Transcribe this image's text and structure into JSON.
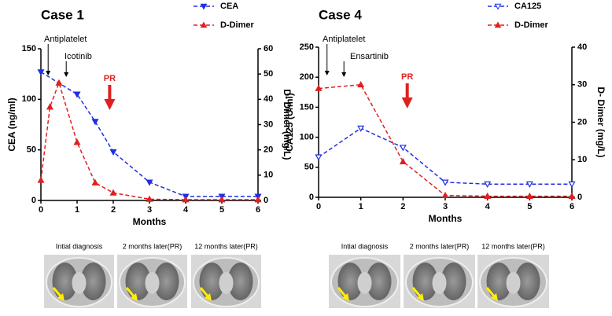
{
  "chart_data": [
    {
      "type": "line",
      "title": "Case 1",
      "xlabel": "Months",
      "ylabel": "CEA (ng/ml)",
      "y2label": "D- Dimer (mg/L)",
      "xlim": [
        0,
        6
      ],
      "xticks": [
        0,
        1,
        2,
        3,
        4,
        5,
        6
      ],
      "ylim": [
        0,
        150
      ],
      "yticks": [
        0,
        50,
        100,
        150
      ],
      "y2lim": [
        0,
        60
      ],
      "y2ticks": [
        0,
        10,
        20,
        30,
        40,
        50,
        60
      ],
      "series": [
        {
          "name": "CEA",
          "color": "#1f2fe0",
          "marker": "triangle-down",
          "filled": true,
          "axis": "y",
          "x": [
            0,
            1,
            1.5,
            2,
            3,
            4,
            5,
            6
          ],
          "values": [
            127,
            105,
            78,
            48,
            18,
            4,
            4,
            4
          ]
        },
        {
          "name": "D-Dimer",
          "color": "#e02020",
          "marker": "triangle-up",
          "filled": true,
          "axis": "y2",
          "x": [
            0,
            0.25,
            0.5,
            1,
            1.5,
            2,
            3,
            4,
            5,
            6
          ],
          "values": [
            8,
            37,
            46.5,
            23,
            7,
            3,
            0.5,
            0.3,
            0.3,
            0.3
          ]
        }
      ],
      "annotations": [
        "Antiplatelet",
        "Icotinib",
        "PR"
      ],
      "image_captions": [
        "Intial diagnosis",
        "2 months later(PR)",
        "12 months later(PR)"
      ]
    },
    {
      "type": "line",
      "title": "Case 4",
      "xlabel": "Months",
      "ylabel": "CA125 (U/ml)",
      "y2label": "D- Dimer (mg/L)",
      "xlim": [
        0,
        6
      ],
      "xticks": [
        0,
        1,
        2,
        3,
        4,
        5,
        6
      ],
      "ylim": [
        0,
        250
      ],
      "yticks": [
        0,
        50,
        100,
        150,
        200,
        250
      ],
      "y2lim": [
        0,
        40
      ],
      "y2ticks": [
        0,
        10,
        20,
        30,
        40
      ],
      "series": [
        {
          "name": "CA125",
          "color": "#1f2fe0",
          "marker": "triangle-down",
          "filled": false,
          "axis": "y",
          "x": [
            0,
            1,
            2,
            3,
            4,
            5,
            6
          ],
          "values": [
            67,
            115,
            83,
            25,
            22,
            22,
            22
          ]
        },
        {
          "name": "D-Dimer",
          "color": "#e02020",
          "marker": "triangle-up",
          "filled": true,
          "axis": "y2",
          "x": [
            0,
            1,
            2,
            3,
            4,
            5,
            6
          ],
          "values": [
            29,
            30,
            9.5,
            0.5,
            0.3,
            0.3,
            0.3
          ]
        }
      ],
      "annotations": [
        "Antiplatelet",
        "Ensartinib",
        "PR"
      ],
      "image_captions": [
        "Intial diagnosis",
        "2 months later(PR)",
        "12 months later(PR)"
      ]
    }
  ]
}
